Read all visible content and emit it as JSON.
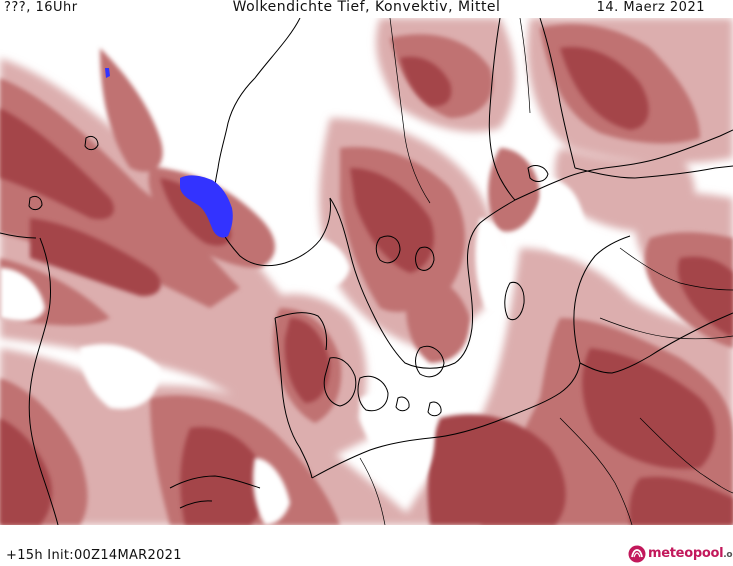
{
  "header": {
    "left": "???, 16Uhr",
    "title": "Wolkendichte  Tief, Konvektiv, Mittel",
    "date": "14. Maerz 2021"
  },
  "footer": {
    "run": "+15h  Init:00Z14MAR2021"
  },
  "logo": {
    "brand": "meteopool",
    "tld": ".org"
  },
  "colors": {
    "cloud_dense": "#a8484a",
    "cloud_mid": "#c27878",
    "cloud_light": "#d9a9a9",
    "cloud_faint": "#ecd4d4",
    "convective": "#3333ff",
    "coast": "#000000"
  }
}
